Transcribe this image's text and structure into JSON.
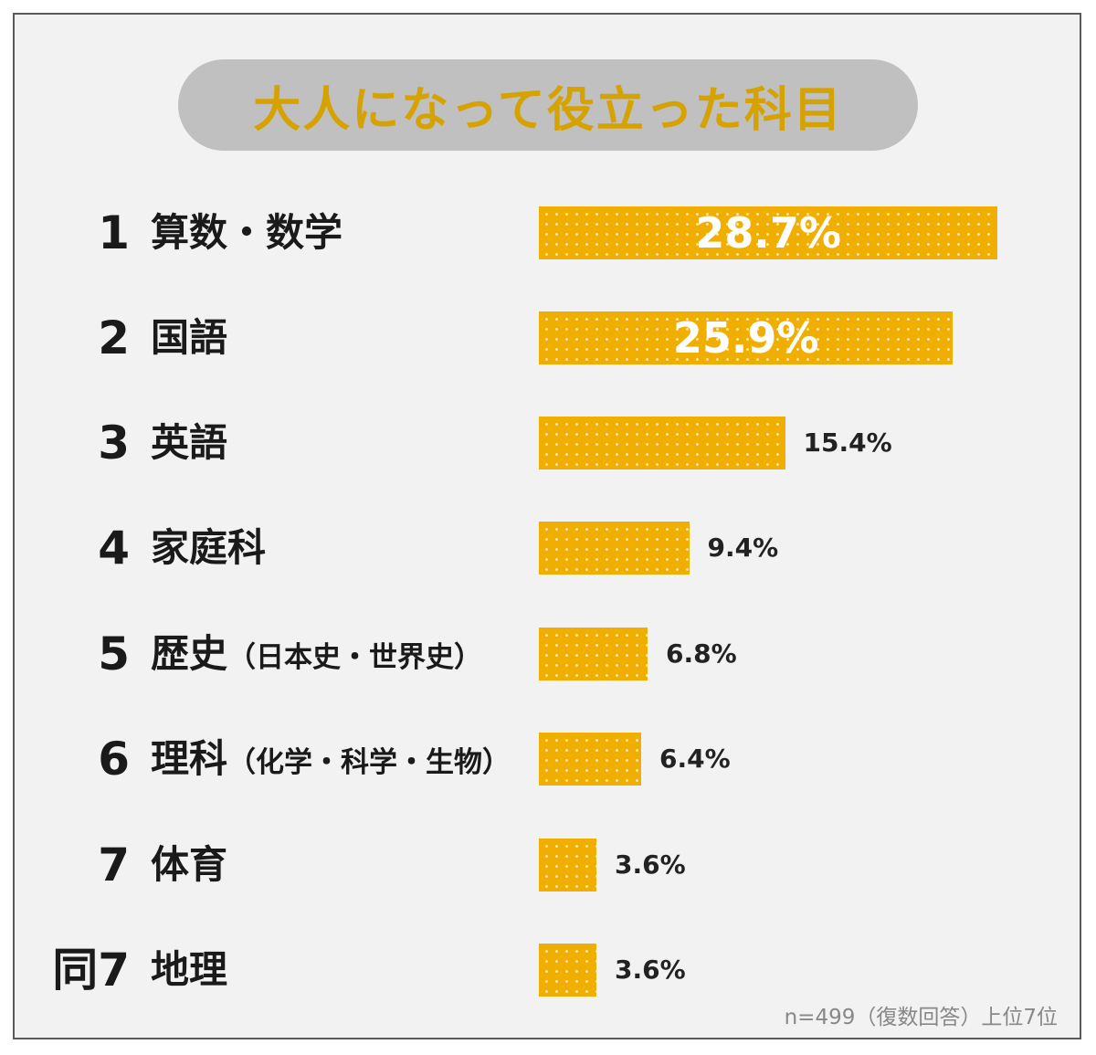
{
  "chart_data": {
    "type": "bar",
    "orientation": "horizontal",
    "title": "大人になって役立った科目",
    "ranks": [
      "1",
      "2",
      "3",
      "4",
      "5",
      "6",
      "7",
      "同7"
    ],
    "categories": [
      "算数・数学",
      "国語",
      "英語",
      "家庭科",
      "歴史",
      "理科",
      "体育",
      "地理"
    ],
    "category_notes": [
      "",
      "",
      "",
      "",
      "（日本史・世界史）",
      "（化学・科学・生物）",
      "",
      ""
    ],
    "values": [
      28.7,
      25.9,
      15.4,
      9.4,
      6.8,
      6.4,
      3.6,
      3.6
    ],
    "value_labels": [
      "28.7%",
      "25.9%",
      "15.4%",
      "9.4%",
      "6.8%",
      "6.4%",
      "3.6%",
      "3.6%"
    ],
    "unit": "%",
    "grid": false,
    "note": "n=499（復数回答）上位7位",
    "colors": {
      "bar": "#f0ae00",
      "title_text": "#d6a200",
      "title_bg": "#c0c0c0",
      "background": "#f2f2f2"
    }
  }
}
